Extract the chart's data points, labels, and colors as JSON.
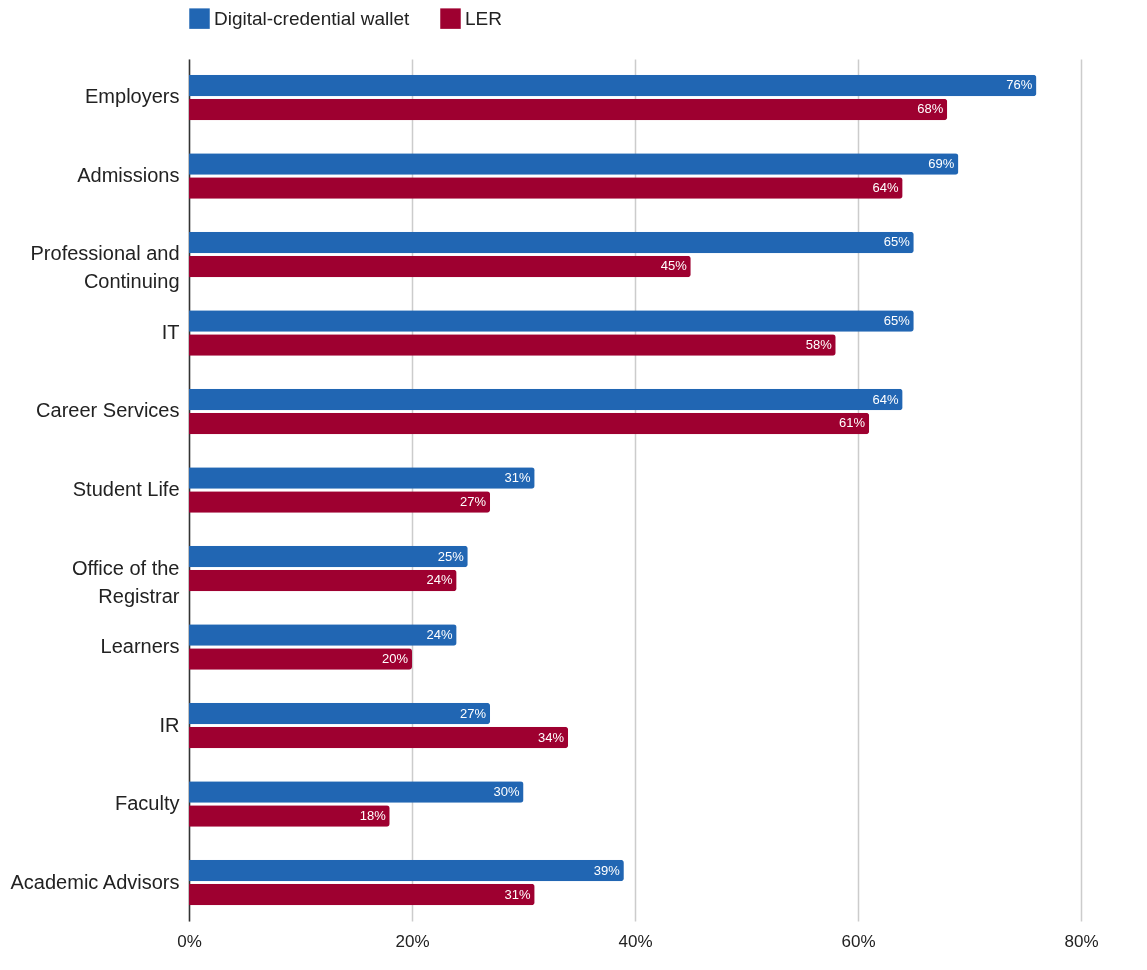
{
  "chart_data": {
    "type": "bar",
    "orientation": "horizontal",
    "categories": [
      "Employers",
      "Admissions",
      "Professional and Continuing",
      "IT",
      "Career Services",
      "Student Life",
      "Office of the Registrar",
      "Learners",
      "IR",
      "Faculty",
      "Academic Advisors"
    ],
    "series": [
      {
        "name": "Digital-credential wallet",
        "color": "#2166b3",
        "values": [
          76,
          69,
          65,
          65,
          64,
          31,
          25,
          24,
          27,
          30,
          39
        ],
        "value_labels": [
          "76%",
          "69%",
          "65%",
          "65%",
          "64%",
          "31%",
          "25%",
          "24%",
          "27%",
          "30%",
          "39%"
        ]
      },
      {
        "name": "LER",
        "color": "#9e0030",
        "values": [
          68,
          64,
          45,
          58,
          61,
          27,
          24,
          20,
          34,
          18,
          31
        ],
        "value_labels": [
          "68%",
          "64%",
          "45%",
          "58%",
          "61%",
          "27%",
          "24%",
          "20%",
          "34%",
          "18%",
          "31%"
        ]
      }
    ],
    "xlim": [
      0,
      80
    ],
    "xticks": [
      {
        "value": 0,
        "label": "0%"
      },
      {
        "value": 20,
        "label": "20%"
      },
      {
        "value": 40,
        "label": "40%"
      },
      {
        "value": 60,
        "label": "60%"
      },
      {
        "value": 80,
        "label": "80%"
      }
    ],
    "grid": "x",
    "legend": "top"
  }
}
